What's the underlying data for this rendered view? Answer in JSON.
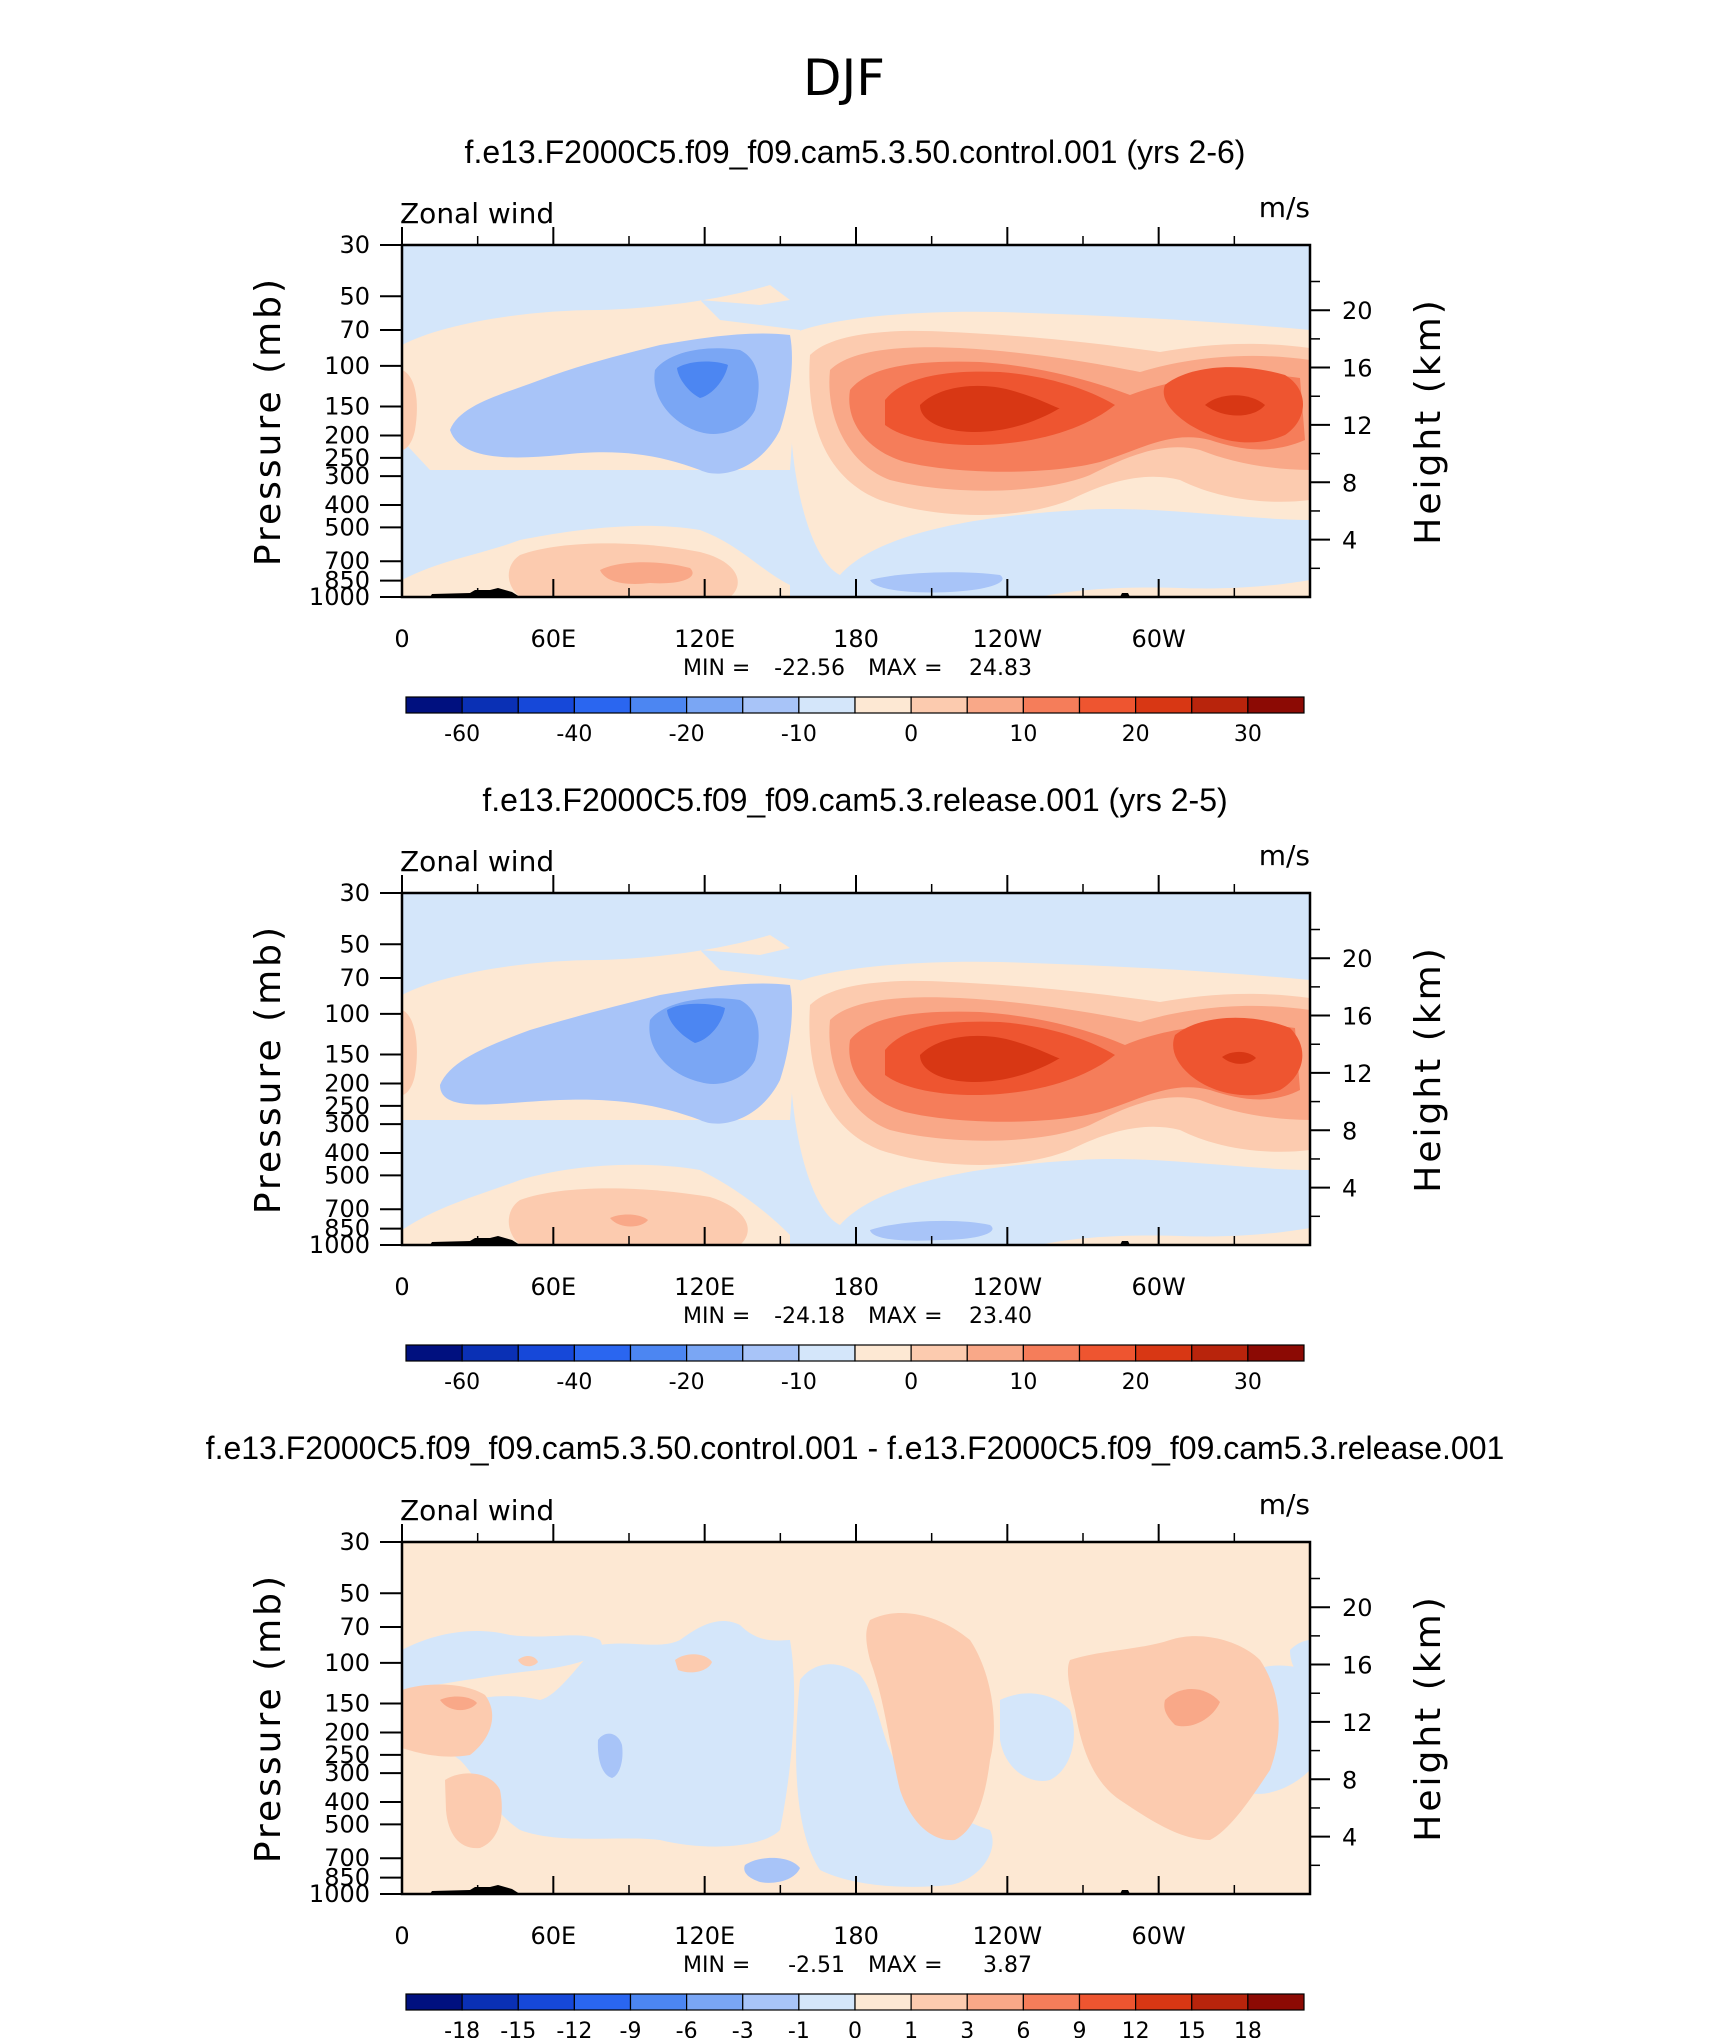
{
  "figure_title": "DJF",
  "chart_data": [
    {
      "type": "heatmap",
      "title": "f.e13.F2000C5.f09_f09.cam5.3.50.control.001 (yrs 2-6)",
      "variable": "Zonal wind",
      "units": "m/s",
      "ylabel": "Pressure (mb)",
      "ylabel_right": "Height (km)",
      "x_ticks": [
        "0",
        "60E",
        "120E",
        "180",
        "120W",
        "60W"
      ],
      "y_ticks": [
        "30",
        "50",
        "70",
        "100",
        "150",
        "200",
        "250",
        "300",
        "400",
        "500",
        "700",
        "850",
        "1000"
      ],
      "y_ticks_right": [
        "20",
        "16",
        "12",
        "8",
        "4"
      ],
      "stat_min_label": "MIN =",
      "stat_min": "-22.56",
      "stat_max_label": "MAX =",
      "stat_max": "24.83",
      "colorbar_labels": [
        "-60",
        "-40",
        "-20",
        "-10",
        "0",
        "10",
        "20",
        "30"
      ],
      "colorbar_colors": [
        "#00107f",
        "#0a30b5",
        "#1648d9",
        "#2a66f0",
        "#4c86f2",
        "#7aa6f4",
        "#a8c4f8",
        "#d4e6fa",
        "#fde8d3",
        "#fccbaf",
        "#f9a888",
        "#f57d5a",
        "#ee5530",
        "#d83714",
        "#b8240c",
        "#8c0a04"
      ],
      "features": [
        {
          "lon": 60,
          "lev": 125,
          "value": -10
        },
        {
          "lon": 114,
          "lev": 105,
          "value": -20
        },
        {
          "lon": 228,
          "lev": 150,
          "value": 20
        },
        {
          "lon": 325,
          "lev": 145,
          "value": 20
        },
        {
          "lon": 100,
          "lev": 750,
          "value": 5
        },
        {
          "lon": 200,
          "lev": 860,
          "value": -5
        }
      ]
    },
    {
      "type": "heatmap",
      "title": "f.e13.F2000C5.f09_f09.cam5.3.release.001 (yrs 2-5)",
      "variable": "Zonal wind",
      "units": "m/s",
      "ylabel": "Pressure (mb)",
      "ylabel_right": "Height (km)",
      "x_ticks": [
        "0",
        "60E",
        "120E",
        "180",
        "120W",
        "60W"
      ],
      "y_ticks": [
        "30",
        "50",
        "70",
        "100",
        "150",
        "200",
        "250",
        "300",
        "400",
        "500",
        "700",
        "850",
        "1000"
      ],
      "y_ticks_right": [
        "20",
        "16",
        "12",
        "8",
        "4"
      ],
      "stat_min_label": "MIN =",
      "stat_min": "-24.18",
      "stat_max_label": "MAX =",
      "stat_max": "23.40",
      "colorbar_labels": [
        "-60",
        "-40",
        "-20",
        "-10",
        "0",
        "10",
        "20",
        "30"
      ],
      "colorbar_colors": [
        "#00107f",
        "#0a30b5",
        "#1648d9",
        "#2a66f0",
        "#4c86f2",
        "#7aa6f4",
        "#a8c4f8",
        "#d4e6fa",
        "#fde8d3",
        "#fccbaf",
        "#f9a888",
        "#f57d5a",
        "#ee5530",
        "#d83714",
        "#b8240c",
        "#8c0a04"
      ],
      "features": [
        {
          "lon": 55,
          "lev": 140,
          "value": -10
        },
        {
          "lon": 112,
          "lev": 105,
          "value": -20
        },
        {
          "lon": 228,
          "lev": 150,
          "value": 20
        },
        {
          "lon": 330,
          "lev": 150,
          "value": 20
        },
        {
          "lon": 95,
          "lev": 760,
          "value": 5
        },
        {
          "lon": 205,
          "lev": 860,
          "value": -5
        }
      ]
    },
    {
      "type": "heatmap",
      "title": "f.e13.F2000C5.f09_f09.cam5.3.50.control.001 - f.e13.F2000C5.f09_f09.cam5.3.release.001",
      "variable": "Zonal wind",
      "units": "m/s",
      "ylabel": "Pressure (mb)",
      "ylabel_right": "Height (km)",
      "x_ticks": [
        "0",
        "60E",
        "120E",
        "180",
        "120W",
        "60W"
      ],
      "y_ticks": [
        "30",
        "50",
        "70",
        "100",
        "150",
        "200",
        "250",
        "300",
        "400",
        "500",
        "700",
        "850",
        "1000"
      ],
      "y_ticks_right": [
        "20",
        "16",
        "12",
        "8",
        "4"
      ],
      "stat_min_label": "MIN =",
      "stat_min": "-2.51",
      "stat_max_label": "MAX =",
      "stat_max": "3.87",
      "colorbar_labels": [
        "-18",
        "-15",
        "-12",
        "-9",
        "-6",
        "-3",
        "-1",
        "0",
        "1",
        "3",
        "6",
        "9",
        "12",
        "15",
        "18"
      ],
      "colorbar_colors": [
        "#00107f",
        "#0a30b5",
        "#1648d9",
        "#2a66f0",
        "#4c86f2",
        "#7aa6f4",
        "#a8c4f8",
        "#d4e6fa",
        "#fde8d3",
        "#fccbaf",
        "#f9a888",
        "#f57d5a",
        "#ee5530",
        "#d83714",
        "#b8240c",
        "#8c0a04"
      ],
      "features": [
        {
          "lon": 20,
          "lev": 150,
          "value": 2
        },
        {
          "lon": 220,
          "lev": 130,
          "value": 1
        },
        {
          "lon": 310,
          "lev": 150,
          "value": 2
        },
        {
          "lon": 80,
          "lev": 200,
          "value": -1
        },
        {
          "lon": 145,
          "lev": 780,
          "value": -2
        }
      ]
    }
  ]
}
